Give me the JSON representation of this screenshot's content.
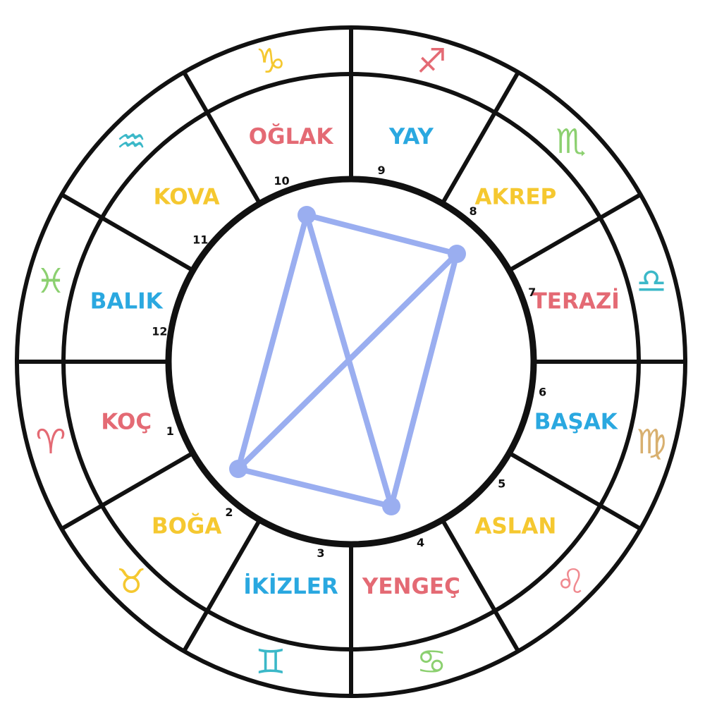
{
  "signs": [
    {
      "name": "KOÇ",
      "glyph": "♈",
      "color": "#e46a74",
      "house": "1"
    },
    {
      "name": "BOĞA",
      "glyph": "♉",
      "color": "#f5c830",
      "house": "2"
    },
    {
      "name": "İKİZLER",
      "glyph": "♊",
      "color": "#2aa8e0",
      "house": "3"
    },
    {
      "name": "YENGEÇ",
      "glyph": "♋",
      "color": "#e46a74",
      "house": "4"
    },
    {
      "name": "ASLAN",
      "glyph": "♌",
      "color": "#f5c830",
      "house": "5"
    },
    {
      "name": "BAŞAK",
      "glyph": "♍",
      "color": "#2aa8e0",
      "house": "6"
    },
    {
      "name": "TERAZİ",
      "glyph": "♎",
      "color": "#e46a74",
      "house": "7"
    },
    {
      "name": "AKREP",
      "glyph": "♏",
      "color": "#f5c830",
      "house": "8"
    },
    {
      "name": "YAY",
      "glyph": "♐",
      "color": "#2aa8e0",
      "house": "9"
    },
    {
      "name": "OĞLAK",
      "glyph": "♑",
      "color": "#e46a74",
      "house": "10"
    },
    {
      "name": "KOVA",
      "glyph": "♒",
      "color": "#f5c830",
      "house": "11"
    },
    {
      "name": "BALIK",
      "glyph": "♓",
      "color": "#2aa8e0",
      "house": "12"
    }
  ],
  "glyph_colors": [
    "#e46a74",
    "#f5c830",
    "#3bb8c8",
    "#8cd070",
    "#f08a90",
    "#d8b070",
    "#3bb8c8",
    "#8cd070",
    "#e46a74",
    "#f5c830",
    "#3bb8c8",
    "#8cd070"
  ],
  "aspect_line_color": "#9aaef0"
}
